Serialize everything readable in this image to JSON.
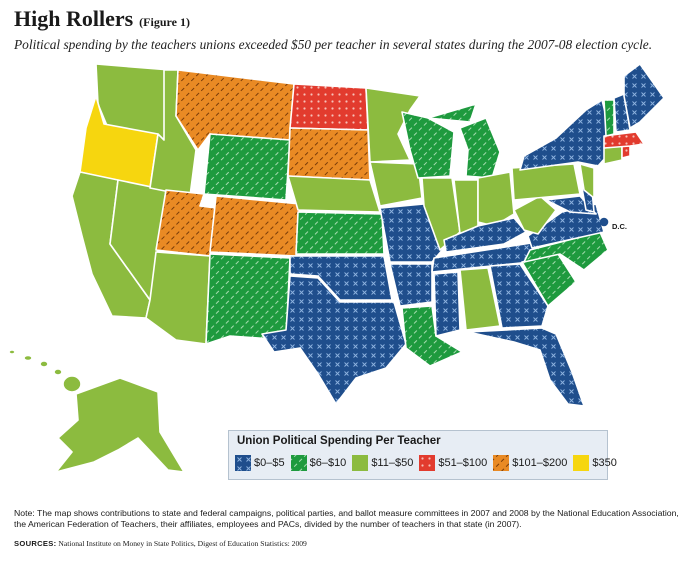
{
  "title": "High Rollers",
  "figure_label": "(Figure 1)",
  "subtitle": "Political spending by the teachers unions exceeded $50 per teacher in several states during the 2007-08 election cycle.",
  "dc_label": "D.C.",
  "legend": {
    "title": "Union Political Spending Per Teacher",
    "items": [
      {
        "label": "$0–$5",
        "color": "#1f4e8c",
        "pattern": "x-marks"
      },
      {
        "label": "$6–$10",
        "color": "#1e9a3e",
        "pattern": "diagonal-stripes"
      },
      {
        "label": "$11–$50",
        "color": "#8cbb3f",
        "pattern": "solid"
      },
      {
        "label": "$51–$100",
        "color": "#e23b2e",
        "pattern": "dots"
      },
      {
        "label": "$101–$200",
        "color": "#e98a24",
        "pattern": "diagonal-stripes"
      },
      {
        "label": "$350",
        "color": "#f6d60f",
        "pattern": "solid"
      }
    ]
  },
  "map": {
    "states": {
      "WA": "$11–$50",
      "OR": "$350",
      "CA": "$11–$50",
      "NV": "$11–$50",
      "ID": "$11–$50",
      "MT": "$101–$200",
      "WY": "$6–$10",
      "UT": "$101–$200",
      "AZ": "$11–$50",
      "CO": "$101–$200",
      "NM": "$6–$10",
      "ND": "$51–$100",
      "SD": "$101–$200",
      "NE": "$11–$50",
      "KS": "$6–$10",
      "OK": "$0–$5",
      "TX": "$0–$5",
      "MN": "$11–$50",
      "IA": "$11–$50",
      "MO": "$0–$5",
      "AR": "$0–$5",
      "LA": "$6–$10",
      "WI": "$6–$10",
      "IL": "$11–$50",
      "MI": "$6–$10",
      "IN": "$11–$50",
      "OH": "$11–$50",
      "KY": "$0–$5",
      "TN": "$0–$5",
      "MS": "$0–$5",
      "AL": "$11–$50",
      "GA": "$0–$5",
      "FL": "$0–$5",
      "SC": "$6–$10",
      "NC": "$6–$10",
      "VA": "$0–$5",
      "WV": "$11–$50",
      "PA": "$11–$50",
      "NY": "$0–$5",
      "VT": "$6–$10",
      "NH": "$0–$5",
      "ME": "$0–$5",
      "MA": "$51–$100",
      "CT": "$11–$50",
      "RI": "$51–$100",
      "NJ": "$11–$50",
      "DE": "$0–$5",
      "MD": "$0–$5",
      "DC": "$0–$5",
      "AK": "$11–$50",
      "HI": "$11–$50"
    }
  },
  "note": "Note: The map shows contributions to state and federal campaigns, political parties, and ballot measure committees in 2007 and 2008 by the National Education Association, the American Federation of Teachers, their affiliates, employees and PACs, divided by the number of teachers in that state (in 2007).",
  "sources_label": "SOURCES:",
  "sources_text": "National Institute on Money in State Politics, Digest of Education Statistics: 2009"
}
